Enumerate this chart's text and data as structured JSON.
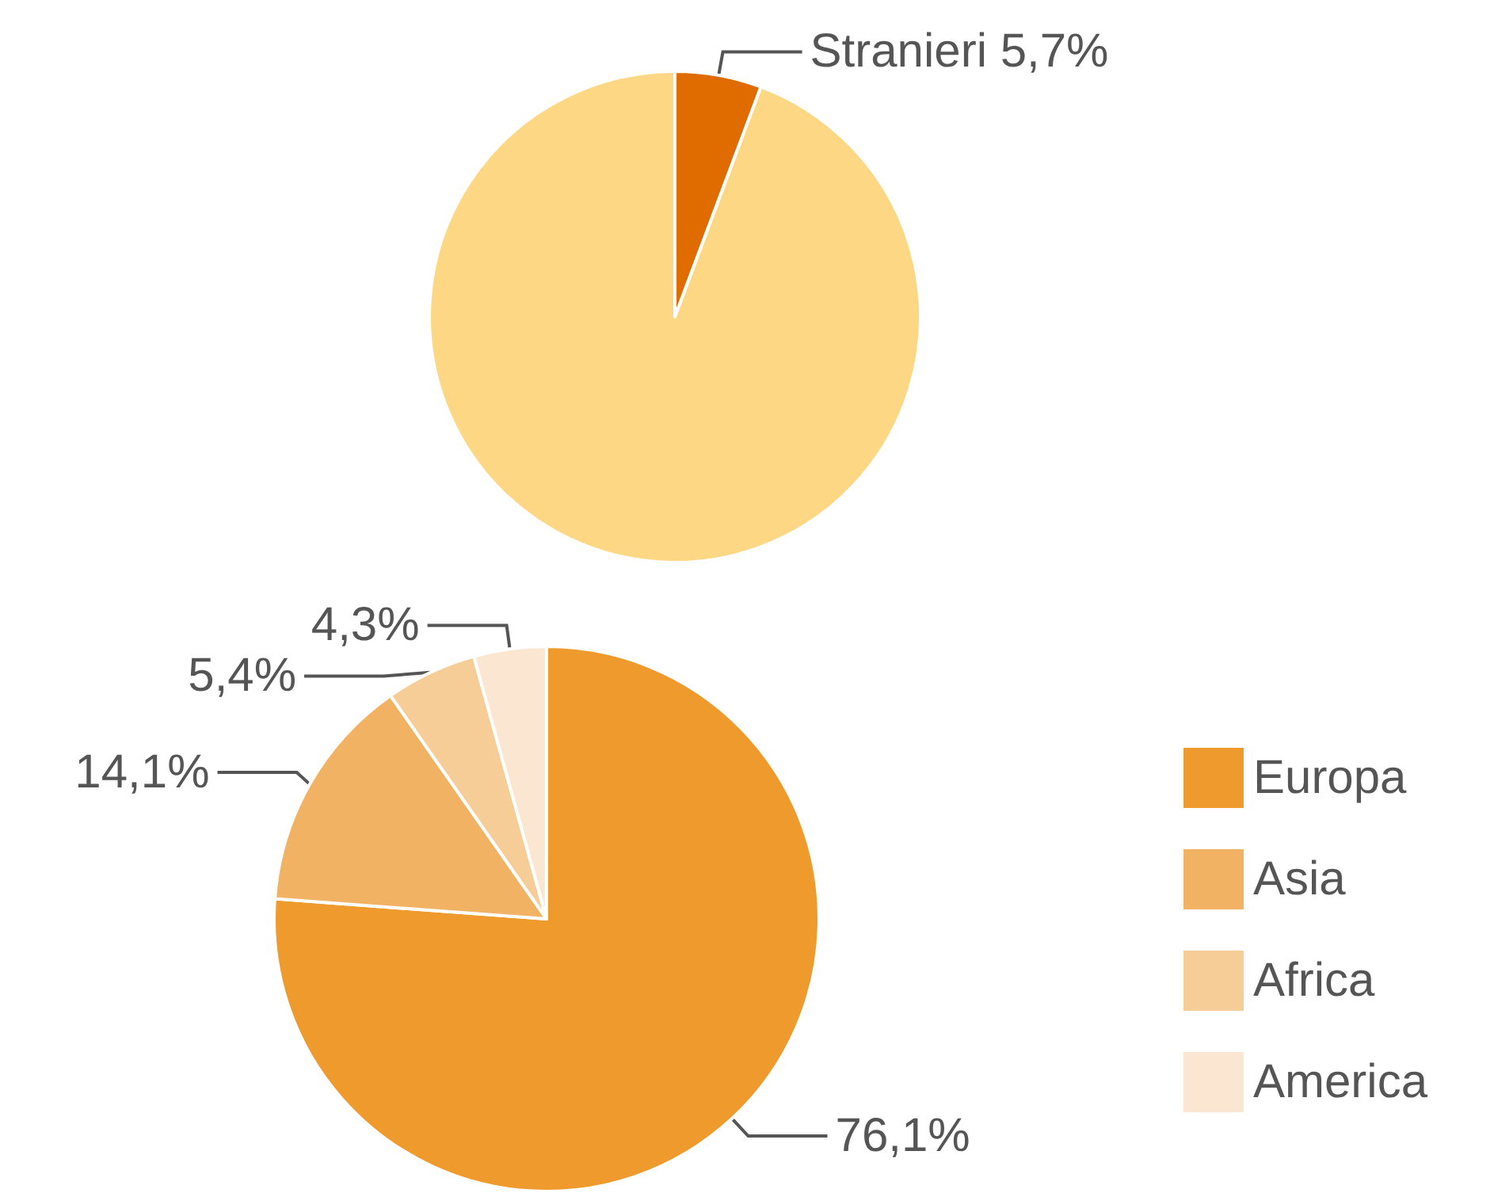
{
  "chart_data": [
    {
      "type": "pie",
      "categories": [
        "Stranieri",
        null
      ],
      "values": [
        5.7,
        94.3
      ],
      "colors": [
        "#e06c00",
        "#fdd784"
      ],
      "value_labels": [
        "5,7%",
        null
      ],
      "legend": false
    },
    {
      "type": "pie",
      "categories": [
        "Europa",
        "Asia",
        "Africa",
        "America"
      ],
      "values": [
        76.1,
        14.1,
        5.4,
        4.3
      ],
      "colors": [
        "#ee9a2c",
        "#f2b263",
        "#f6cc97",
        "#fbe6d2"
      ],
      "value_labels": [
        "76,1%",
        "14,1%",
        "5,4%",
        "4,3%"
      ],
      "legend": "right"
    }
  ]
}
